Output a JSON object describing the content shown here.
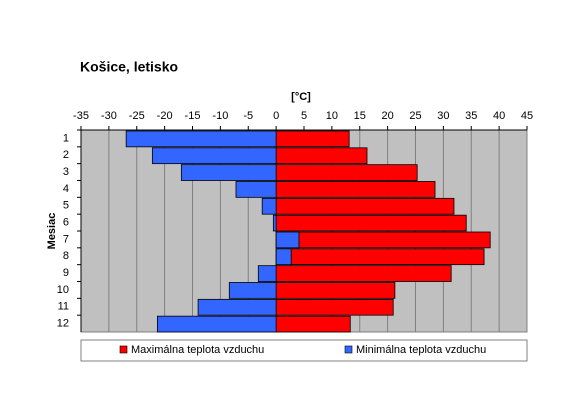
{
  "chart_data": {
    "type": "hbar",
    "title": "Košice, letisko",
    "x_label": "[°C]",
    "y_label": "Mesiac",
    "categories": [
      "1",
      "2",
      "3",
      "4",
      "5",
      "6",
      "7",
      "8",
      "9",
      "10",
      "11",
      "12"
    ],
    "series": [
      {
        "name": "Maximálna teplota vzduchu",
        "color": "#ff0000",
        "values": [
          13.1,
          16.3,
          25.3,
          28.5,
          31.9,
          34.1,
          38.4,
          37.3,
          31.4,
          21.3,
          21.0,
          13.3
        ]
      },
      {
        "name": "Minimálna teplota vzduchu",
        "color": "#3366ff",
        "values": [
          -26.9,
          -22.2,
          -17.0,
          -7.2,
          -2.5,
          -0.5,
          4.1,
          2.7,
          -3.2,
          -8.4,
          -14.0,
          -21.3
        ]
      }
    ],
    "xlim": [
      -35,
      45
    ],
    "xticks": [
      -35,
      -30,
      -25,
      -20,
      -15,
      -10,
      -5,
      0,
      5,
      10,
      15,
      20,
      25,
      30,
      35,
      40,
      45
    ],
    "grid": true,
    "legend": "bottom"
  }
}
